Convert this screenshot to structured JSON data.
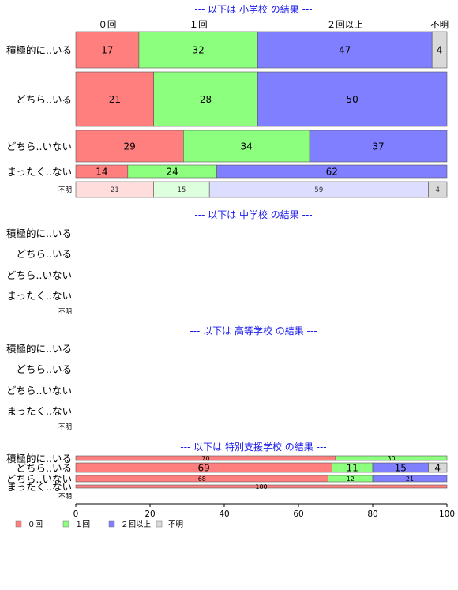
{
  "chart_data": {
    "type": "bar",
    "orientation": "horizontal",
    "stacked": true,
    "percent": true,
    "xlim": [
      0,
      100
    ],
    "xticks": [
      0,
      20,
      40,
      60,
      80,
      100
    ],
    "categories_header": [
      "０回",
      "１回",
      "２回以上",
      "不明"
    ],
    "colors": [
      "#ff7f7f",
      "#8cff7f",
      "#7f7fff",
      "#d9d9d9"
    ],
    "unknown_colors": [
      "#ffdddd",
      "#ddffdd",
      "#ddddff",
      "#d9d9d9"
    ],
    "legend": [
      {
        "name": "０回",
        "color": "#ff7f7f"
      },
      {
        "name": "１回",
        "color": "#8cff7f"
      },
      {
        "name": "２回以上",
        "color": "#7f7fff"
      },
      {
        "name": "不明",
        "color": "#d9d9d9"
      }
    ],
    "panels": [
      {
        "title": "--- 以下は 小学校 の結果 ---",
        "rows": [
          {
            "label": "積極的に..いる",
            "values": [
              17,
              32,
              47,
              4
            ],
            "labels": [
              "17",
              "32",
              "47",
              "4"
            ],
            "weight": 74
          },
          {
            "label": "どちら..いる",
            "values": [
              21,
              28,
              50,
              0
            ],
            "labels": [
              "21",
              "28",
              "50",
              ""
            ],
            "weight": 70
          },
          {
            "label": "どちら..いない",
            "values": [
              29,
              34,
              37,
              0
            ],
            "labels": [
              "29",
              "34",
              "37",
              ""
            ],
            "weight": 40
          },
          {
            "label": "まったく..ない",
            "values": [
              14,
              24,
              62,
              0
            ],
            "labels": [
              "14",
              "24",
              "62",
              ""
            ],
            "weight": 16
          },
          {
            "label": "不明",
            "values": [
              21,
              15,
              59,
              4
            ],
            "labels": [
              "21",
              "15",
              "59",
              "4"
            ],
            "weight": 20,
            "unknown": true
          }
        ]
      },
      {
        "title": "--- 以下は 中学校 の結果 ---",
        "rows": [
          {
            "label": "積極的に..いる",
            "values": [],
            "labels": []
          },
          {
            "label": "どちら..いる",
            "values": [],
            "labels": []
          },
          {
            "label": "どちら..いない",
            "values": [],
            "labels": []
          },
          {
            "label": "まったく..ない",
            "values": [],
            "labels": []
          },
          {
            "label": "不明",
            "values": [],
            "labels": [],
            "unknown": true
          }
        ]
      },
      {
        "title": "--- 以下は 高等学校 の結果 ---",
        "rows": [
          {
            "label": "積極的に..いる",
            "values": [],
            "labels": []
          },
          {
            "label": "どちら..いる",
            "values": [],
            "labels": []
          },
          {
            "label": "どちら..いない",
            "values": [],
            "labels": []
          },
          {
            "label": "まったく..ない",
            "values": [],
            "labels": []
          },
          {
            "label": "不明",
            "values": [],
            "labels": [],
            "unknown": true
          }
        ]
      },
      {
        "title": "--- 以下は 特別支援学校 の結果 ---",
        "rows": [
          {
            "label": "積極的に..いる",
            "values": [
              70,
              30,
              0,
              0
            ],
            "labels": [
              "70",
              "30",
              "",
              ""
            ],
            "weight": 8
          },
          {
            "label": "どちら..いる",
            "values": [
              69,
              11,
              15,
              4
            ],
            "labels": [
              "69",
              "11",
              "15",
              "4"
            ],
            "weight": 12
          },
          {
            "label": "どちら..いない",
            "values": [
              68,
              12,
              21,
              0
            ],
            "labels": [
              "68",
              "12",
              "21",
              ""
            ],
            "weight": 8
          },
          {
            "label": "まったく..ない",
            "values": [
              100,
              0,
              0,
              0
            ],
            "labels": [
              "100",
              "",
              "",
              ""
            ],
            "weight": 4
          },
          {
            "label": "不明",
            "values": [],
            "labels": [],
            "unknown": true
          }
        ]
      }
    ]
  }
}
